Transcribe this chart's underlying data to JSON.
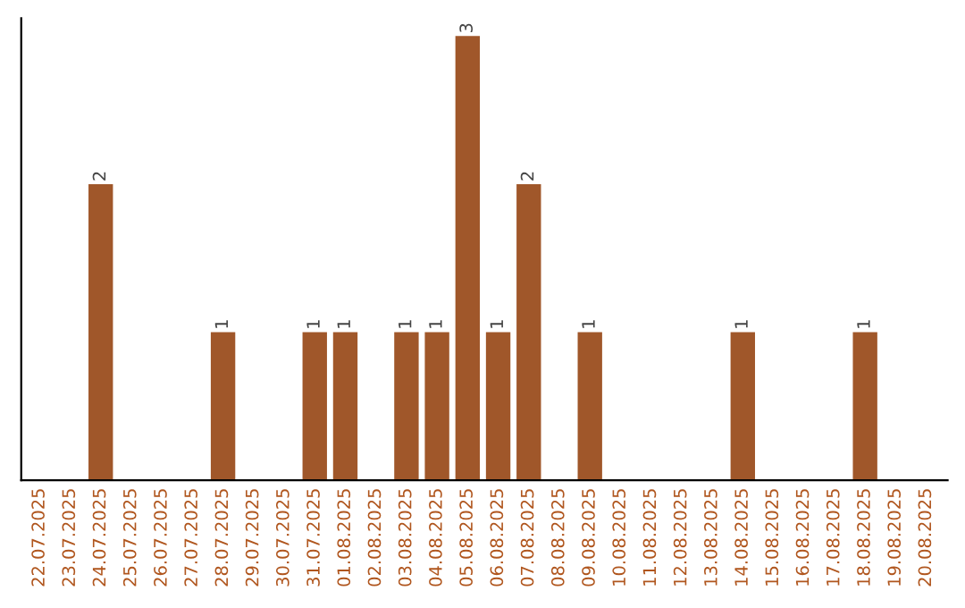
{
  "chart_data": {
    "type": "bar",
    "categories": [
      "22.07.2025",
      "23.07.2025",
      "24.07.2025",
      "25.07.2025",
      "26.07.2025",
      "27.07.2025",
      "28.07.2025",
      "29.07.2025",
      "30.07.2025",
      "31.07.2025",
      "01.08.2025",
      "02.08.2025",
      "03.08.2025",
      "04.08.2025",
      "05.08.2025",
      "06.08.2025",
      "07.08.2025",
      "08.08.2025",
      "09.08.2025",
      "10.08.2025",
      "11.08.2025",
      "12.08.2025",
      "13.08.2025",
      "14.08.2025",
      "15.08.2025",
      "16.08.2025",
      "17.08.2025",
      "18.08.2025",
      "19.08.2025",
      "20.08.2025"
    ],
    "values": [
      0,
      0,
      2,
      0,
      0,
      0,
      1,
      0,
      0,
      1,
      1,
      0,
      1,
      1,
      3,
      1,
      2,
      0,
      1,
      0,
      0,
      0,
      0,
      1,
      0,
      0,
      0,
      1,
      0,
      0
    ],
    "value_labels": [
      null,
      null,
      "2",
      null,
      null,
      null,
      "1",
      null,
      null,
      "1",
      "1",
      null,
      "1",
      "1",
      "3",
      "1",
      "2",
      null,
      "1",
      null,
      null,
      null,
      null,
      "1",
      null,
      null,
      null,
      "1",
      null,
      null
    ],
    "color": "#a0572a",
    "grid": false
  }
}
